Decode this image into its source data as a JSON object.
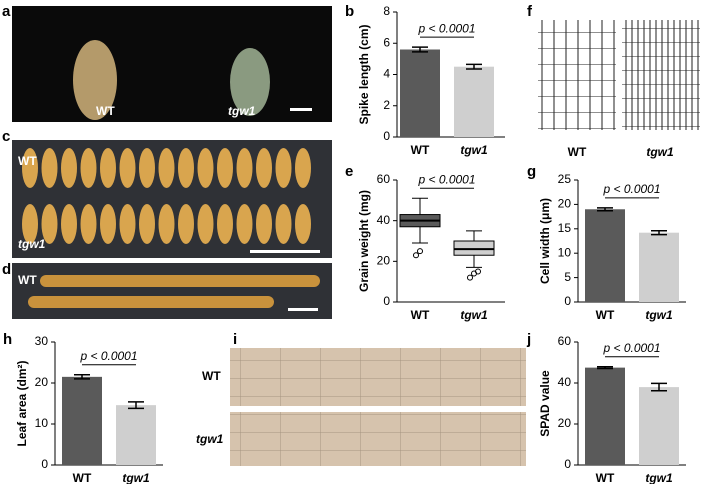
{
  "images": [
    {
      "letter": "a",
      "labels": [
        "WT",
        "tgw1"
      ]
    },
    {
      "letter": "c",
      "labels": [
        "WT",
        "tgw1"
      ]
    },
    {
      "letter": "d",
      "labels": [
        "WT"
      ]
    },
    {
      "letter": "f",
      "labels": [
        "WT",
        "tgw1"
      ]
    },
    {
      "letter": "i",
      "labels": [
        "WT",
        "tgw1"
      ]
    }
  ],
  "chart_data": [
    {
      "type": "bar",
      "letter": "b",
      "ylabel": "Spike length (cm)",
      "annotation": "p < 0.0001",
      "categories": [
        "WT",
        "tgw1"
      ],
      "values": [
        5.6,
        4.5
      ],
      "errors": [
        0.15,
        0.15
      ],
      "colors": [
        "#5a5a5a",
        "#cfcfcf"
      ],
      "ylim": [
        0,
        8
      ],
      "yticks": [
        0,
        2,
        4,
        6,
        8
      ]
    },
    {
      "type": "box",
      "letter": "e",
      "ylabel": "Grain weight (mg)",
      "annotation": "p < 0.0001",
      "categories": [
        "WT",
        "tgw1"
      ],
      "boxes": [
        {
          "whislo": 29,
          "q1": 37,
          "med": 40,
          "q3": 43,
          "whishi": 51,
          "fliers": [
            23,
            25
          ]
        },
        {
          "whislo": 17,
          "q1": 23,
          "med": 26,
          "q3": 30,
          "whishi": 35,
          "fliers": [
            12,
            14,
            15
          ]
        }
      ],
      "colors": [
        "#5a5a5a",
        "#cfcfcf"
      ],
      "ylim": [
        0,
        60
      ],
      "yticks": [
        0,
        20,
        40,
        60
      ]
    },
    {
      "type": "bar",
      "letter": "g",
      "ylabel": "Cell width (μm)",
      "annotation": "p < 0.0001",
      "categories": [
        "WT",
        "tgw1"
      ],
      "values": [
        19,
        14.2
      ],
      "errors": [
        0.3,
        0.4
      ],
      "colors": [
        "#5a5a5a",
        "#cfcfcf"
      ],
      "ylim": [
        0,
        25
      ],
      "yticks": [
        0,
        5,
        10,
        15,
        20,
        25
      ]
    },
    {
      "type": "bar",
      "letter": "h",
      "ylabel": "Leaf area (dm²)",
      "annotation": "p < 0.0001",
      "categories": [
        "WT",
        "tgw1"
      ],
      "values": [
        21.5,
        14.6
      ],
      "errors": [
        0.5,
        0.8
      ],
      "colors": [
        "#5a5a5a",
        "#cfcfcf"
      ],
      "ylim": [
        0,
        30
      ],
      "yticks": [
        0,
        10,
        20,
        30
      ]
    },
    {
      "type": "bar",
      "letter": "j",
      "ylabel": "SPAD value",
      "annotation": "p < 0.0001",
      "categories": [
        "WT",
        "tgw1"
      ],
      "values": [
        47.5,
        38
      ],
      "errors": [
        0.4,
        1.8
      ],
      "colors": [
        "#5a5a5a",
        "#cfcfcf"
      ],
      "ylim": [
        0,
        60
      ],
      "yticks": [
        0,
        20,
        40,
        60
      ]
    }
  ]
}
